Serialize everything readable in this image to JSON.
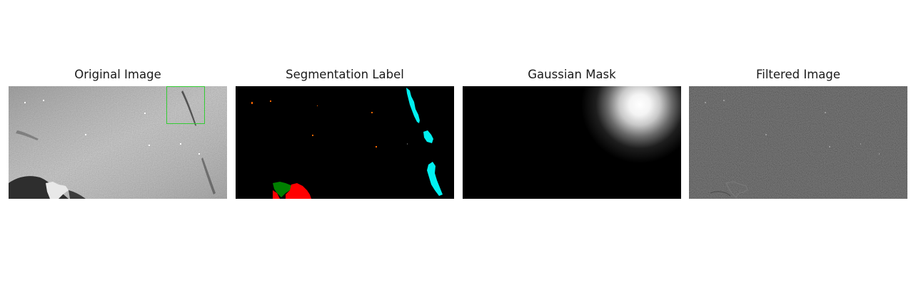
{
  "panels": [
    {
      "title": "Original Image"
    },
    {
      "title": "Segmentation Label"
    },
    {
      "title": "Gaussian Mask"
    },
    {
      "title": "Filtered Image"
    }
  ],
  "colors": {
    "highlight_box": "#33cc33",
    "segment_cyan": "#00f0f0",
    "segment_green": "#008000",
    "segment_red": "#ff0000",
    "segment_orange": "#ff6600"
  }
}
